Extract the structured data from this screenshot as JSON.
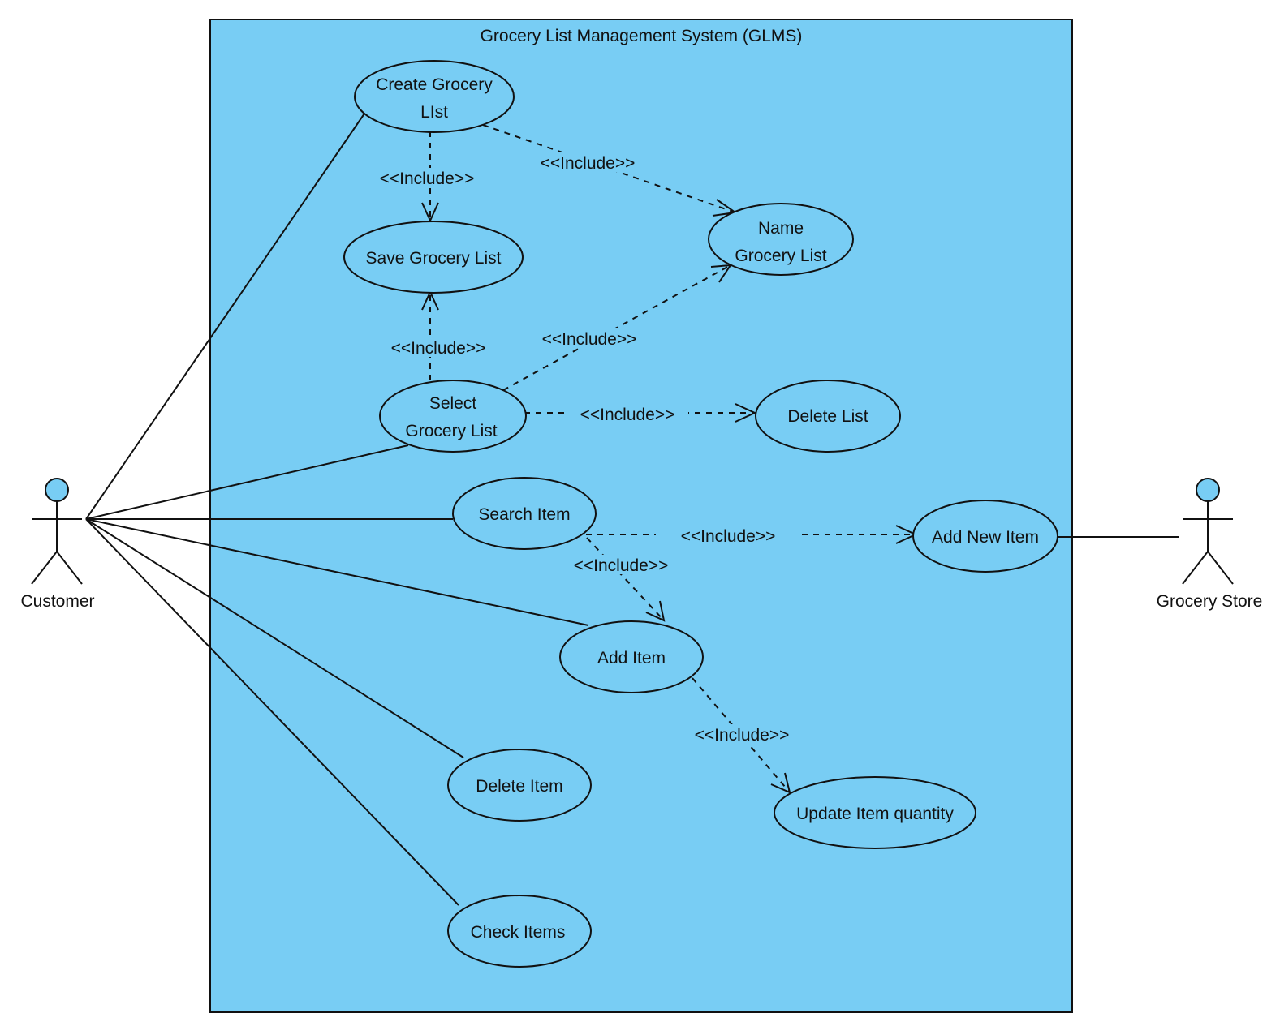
{
  "colors": {
    "system_fill": "#78CDF4",
    "usecase_fill": "#78CDF4",
    "actor_head_fill": "#78CDF4",
    "stroke": "#111111"
  },
  "system": {
    "title": "Grocery List Management System (GLMS)"
  },
  "actors": {
    "customer": "Customer",
    "grocery_store": "Grocery Store"
  },
  "use_cases": {
    "create_list": [
      "Create Grocery",
      "LIst"
    ],
    "save_list": [
      "Save Grocery List"
    ],
    "name_list": [
      "Name",
      "Grocery List"
    ],
    "select_list": [
      "Select",
      "Grocery List"
    ],
    "delete_list": [
      "Delete List"
    ],
    "search_item": [
      "Search Item"
    ],
    "add_new_item": [
      "Add New Item"
    ],
    "add_item": [
      "Add Item"
    ],
    "delete_item": [
      "Delete Item"
    ],
    "update_qty": [
      "Update Item quantity"
    ],
    "check_items": [
      "Check Items"
    ]
  },
  "include_label": "<<Include>>"
}
